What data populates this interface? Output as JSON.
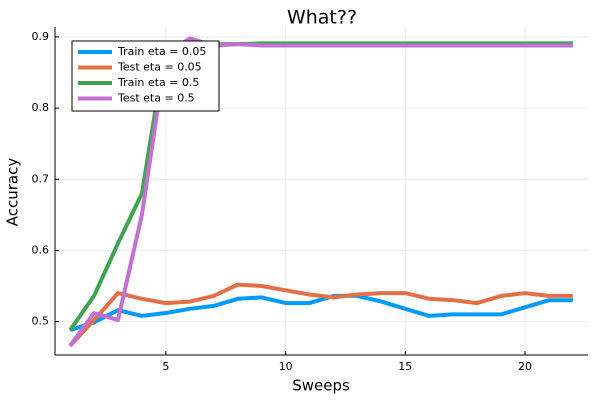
{
  "chart_data": {
    "type": "line",
    "title": "What??",
    "xlabel": "Sweeps",
    "ylabel": "Accuracy",
    "xlim": [
      0.37,
      22.63
    ],
    "ylim": [
      0.453,
      0.914
    ],
    "xticks": [
      5,
      10,
      15,
      20
    ],
    "yticks": [
      0.5,
      0.6,
      0.7,
      0.8,
      0.9
    ],
    "grid": true,
    "legend_position": "top-left",
    "x": [
      1,
      2,
      3,
      4,
      5,
      6,
      7,
      8,
      9,
      10,
      11,
      12,
      13,
      14,
      15,
      16,
      17,
      18,
      19,
      20,
      21,
      22
    ],
    "series": [
      {
        "name": "Train eta = 0.05",
        "color": "#009AFA",
        "values": [
          0.488,
          0.499,
          0.516,
          0.508,
          0.512,
          0.518,
          0.522,
          0.532,
          0.534,
          0.526,
          0.526,
          0.536,
          0.536,
          0.528,
          0.518,
          0.508,
          0.51,
          0.51,
          0.51,
          0.52,
          0.53,
          0.53
        ]
      },
      {
        "name": "Test eta = 0.05",
        "color": "#E36F47",
        "values": [
          0.466,
          0.502,
          0.54,
          0.532,
          0.526,
          0.528,
          0.536,
          0.552,
          0.55,
          0.544,
          0.538,
          0.534,
          0.538,
          0.54,
          0.54,
          0.532,
          0.53,
          0.526,
          0.536,
          0.54,
          0.536,
          0.536
        ]
      },
      {
        "name": "Train eta = 0.5",
        "color": "#3EA44E",
        "values": [
          0.488,
          0.536,
          0.61,
          0.68,
          0.888,
          0.89,
          0.89,
          0.89,
          0.891,
          0.891,
          0.891,
          0.891,
          0.891,
          0.891,
          0.891,
          0.891,
          0.891,
          0.891,
          0.891,
          0.891,
          0.891,
          0.891
        ]
      },
      {
        "name": "Test eta = 0.5",
        "color": "#C271D2",
        "values": [
          0.466,
          0.512,
          0.502,
          0.65,
          0.876,
          0.898,
          0.888,
          0.89,
          0.888,
          0.888,
          0.888,
          0.888,
          0.888,
          0.888,
          0.888,
          0.888,
          0.888,
          0.888,
          0.888,
          0.888,
          0.888,
          0.888
        ]
      }
    ]
  }
}
